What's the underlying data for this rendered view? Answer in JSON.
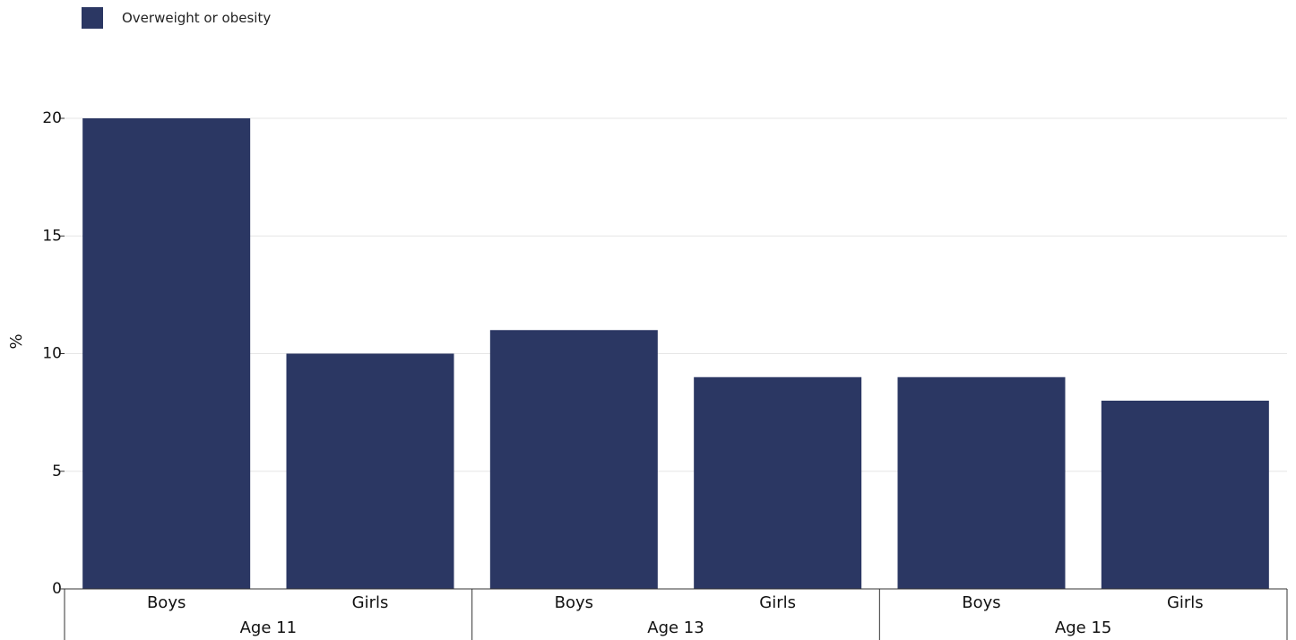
{
  "chart_data": {
    "type": "bar",
    "categories": [
      "Boys",
      "Girls",
      "Boys",
      "Girls",
      "Boys",
      "Girls"
    ],
    "groups": [
      {
        "label": "Age 11",
        "members": [
          0,
          1
        ]
      },
      {
        "label": "Age 13",
        "members": [
          2,
          3
        ]
      },
      {
        "label": "Age 15",
        "members": [
          4,
          5
        ]
      }
    ],
    "series": [
      {
        "name": "Overweight or obesity",
        "color": "#2b3763",
        "values": [
          20,
          10,
          11,
          9,
          9,
          8
        ]
      }
    ],
    "ylabel": "%",
    "ylim": [
      0,
      20
    ],
    "yticks": [
      0,
      5,
      10,
      15,
      20
    ],
    "grid": true,
    "legend_position": "top-left"
  }
}
